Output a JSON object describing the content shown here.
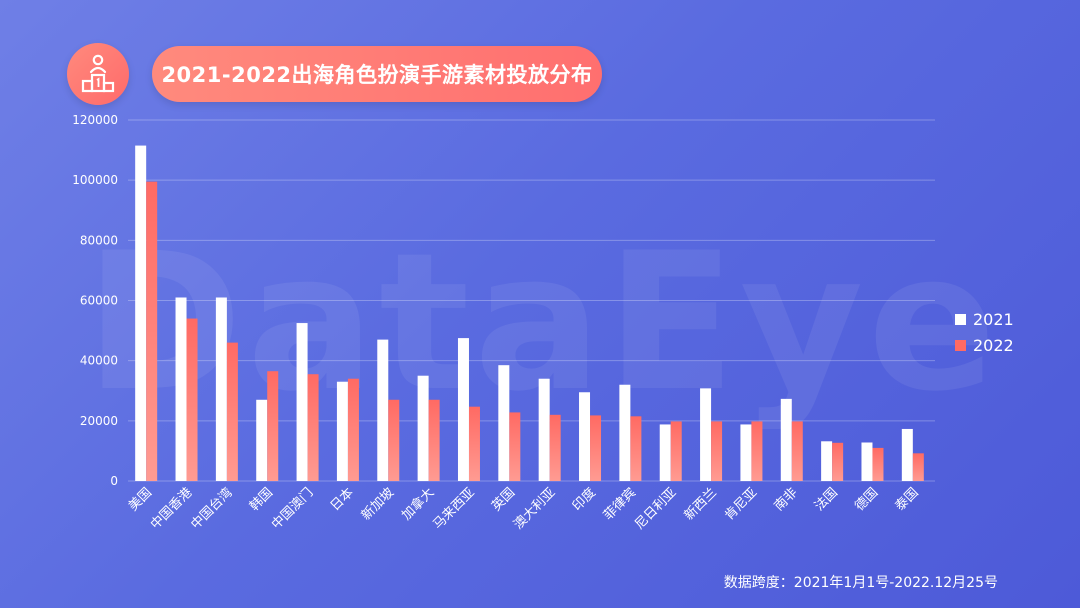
{
  "watermark": "DataEye",
  "title": "2021-2022出海角色扮演手游素材投放分布",
  "icon": "podium-icon",
  "footer": "数据跨度：2021年1月1号-2022.12月25号",
  "colors": {
    "series_2021": "#ffffff",
    "series_2022": "#ff6a63",
    "accent": "#ff7a72"
  },
  "chart_data": {
    "type": "bar",
    "categories": [
      "美国",
      "中国香港",
      "中国台湾",
      "韩国",
      "中国澳门",
      "日本",
      "新加坡",
      "加拿大",
      "马来西亚",
      "英国",
      "澳大利亚",
      "印度",
      "菲律宾",
      "尼日利亚",
      "新西兰",
      "肯尼亚",
      "南非",
      "法国",
      "德国",
      "泰国"
    ],
    "series": [
      {
        "name": "2021",
        "values": [
          111500,
          61000,
          61000,
          27000,
          52500,
          33000,
          47000,
          35000,
          47500,
          38500,
          34000,
          29500,
          32000,
          18800,
          30800,
          18800,
          27300,
          13200,
          12800,
          17300
        ]
      },
      {
        "name": "2022",
        "values": [
          99500,
          54000,
          46000,
          36500,
          35500,
          34000,
          27000,
          27000,
          24700,
          22800,
          22000,
          21800,
          21500,
          19800,
          19800,
          19800,
          19800,
          12700,
          11000,
          9200
        ]
      }
    ],
    "yticks": [
      "0",
      "20000",
      "40000",
      "60000",
      "80000",
      "100000",
      "120000"
    ],
    "ylim": [
      0,
      120000
    ],
    "grid": true,
    "legend": "right"
  }
}
